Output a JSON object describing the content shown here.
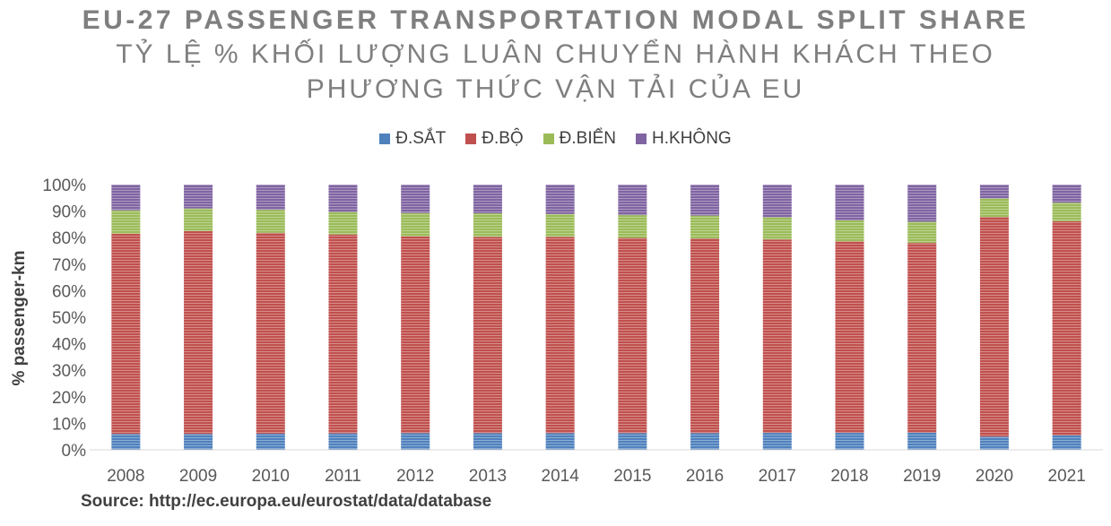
{
  "chart_data": {
    "type": "bar",
    "stacked": true,
    "title": "EU-27 PASSENGER TRANSPORTATION MODAL SPLIT SHARE",
    "subtitle_lines": [
      "TỶ LỆ % KHỐI LƯỢNG LUÂN CHUYỂN HÀNH KHÁCH THEO",
      "PHƯƠNG THỨC VẬN TẢI CỦA EU"
    ],
    "ylabel": "% passenger-km",
    "xlabel": "",
    "ylim": [
      0,
      100
    ],
    "yticks": [
      "0%",
      "10%",
      "20%",
      "30%",
      "40%",
      "50%",
      "60%",
      "70%",
      "80%",
      "90%",
      "100%"
    ],
    "categories": [
      "2008",
      "2009",
      "2010",
      "2011",
      "2012",
      "2013",
      "2014",
      "2015",
      "2016",
      "2017",
      "2018",
      "2019",
      "2020",
      "2021"
    ],
    "legend_position": "top",
    "grid": false,
    "series": [
      {
        "name": "Đ.SẮT",
        "color": "#4f81bd",
        "values": [
          6.0,
          6.0,
          6.1,
          6.2,
          6.3,
          6.3,
          6.3,
          6.3,
          6.3,
          6.4,
          6.4,
          6.5,
          5.0,
          5.5
        ]
      },
      {
        "name": "Đ.BỘ",
        "color": "#c0504d",
        "values": [
          75.5,
          76.5,
          75.7,
          75.0,
          74.2,
          74.0,
          74.0,
          73.6,
          73.4,
          72.9,
          72.2,
          71.5,
          82.8,
          80.7
        ]
      },
      {
        "name": "Đ.BIỂN",
        "color": "#9bbb59",
        "values": [
          8.8,
          8.5,
          8.7,
          8.5,
          8.8,
          8.9,
          8.6,
          8.6,
          8.6,
          8.4,
          7.9,
          8.0,
          7.0,
          7.0
        ]
      },
      {
        "name": "H.KHÔNG",
        "color": "#8064a2",
        "values": [
          9.7,
          9.0,
          9.5,
          10.3,
          10.7,
          10.8,
          11.1,
          11.5,
          11.7,
          12.3,
          13.5,
          14.0,
          5.2,
          6.8
        ]
      }
    ],
    "source": "Source: http://ec.europa.eu/eurostat/data/database"
  }
}
